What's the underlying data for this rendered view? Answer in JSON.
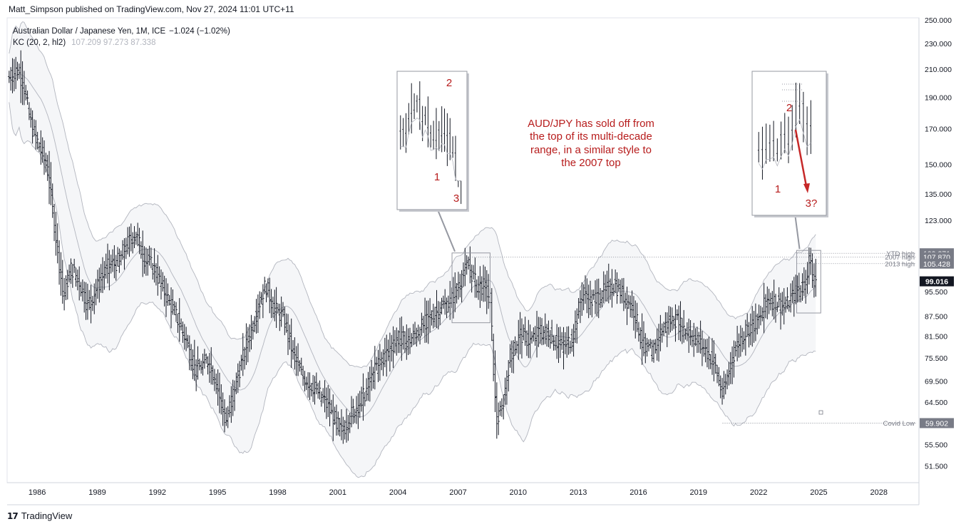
{
  "header": {
    "published_by": "Matt_Simpson published on TradingView.com, Nov 27, 2024 11:01 UTC+11"
  },
  "legend": {
    "symbol": "Australian Dollar / Japanese Yen, 1M, ICE",
    "change": "−1.024 (−1.02%)",
    "indicator": "KC (20, 2, hl2)",
    "indicator_values": "107.209  97.273  87.338"
  },
  "colors": {
    "candle": "#131722",
    "band": "#b2b5be",
    "annotation": "#b71c1c",
    "arrow": "#c62828"
  },
  "chart_data": {
    "type": "ohlc-bar",
    "symbol": "AUD/JPY",
    "timeframe": "1M",
    "xlim": [
      1984.5,
      2030.0
    ],
    "ylim": [
      48.5,
      252.0
    ],
    "y_scale": "log",
    "x_ticks": [
      "1986",
      "1989",
      "1992",
      "1995",
      "1998",
      "2001",
      "2004",
      "2007",
      "2010",
      "2013",
      "2016",
      "2019",
      "2022",
      "2025",
      "2028"
    ],
    "y_ticks": [
      "250.000",
      "230.000",
      "210.000",
      "190.000",
      "170.000",
      "150.000",
      "135.000",
      "123.000",
      "95.500",
      "87.500",
      "81.500",
      "75.500",
      "69.500",
      "64.500",
      "55.500",
      "51.500"
    ],
    "anchors": [
      [
        1984.6,
        204
      ],
      [
        1985.0,
        210
      ],
      [
        1985.3,
        200
      ],
      [
        1985.7,
        172
      ],
      [
        1986.1,
        160
      ],
      [
        1986.5,
        148
      ],
      [
        1986.9,
        118
      ],
      [
        1987.3,
        94
      ],
      [
        1987.7,
        104
      ],
      [
        1988.1,
        99
      ],
      [
        1988.5,
        91
      ],
      [
        1989.0,
        97
      ],
      [
        1989.5,
        104
      ],
      [
        1990.0,
        106
      ],
      [
        1990.5,
        113
      ],
      [
        1990.9,
        118
      ],
      [
        1991.3,
        108
      ],
      [
        1991.8,
        104
      ],
      [
        1992.3,
        96
      ],
      [
        1992.9,
        88
      ],
      [
        1993.4,
        81
      ],
      [
        1993.9,
        72
      ],
      [
        1994.5,
        75
      ],
      [
        1994.9,
        70
      ],
      [
        1995.4,
        60
      ],
      [
        1995.9,
        69
      ],
      [
        1996.5,
        80
      ],
      [
        1997.0,
        90
      ],
      [
        1997.4,
        98
      ],
      [
        1997.8,
        90
      ],
      [
        1998.3,
        87
      ],
      [
        1998.8,
        76
      ],
      [
        1999.2,
        71
      ],
      [
        1999.8,
        68
      ],
      [
        2000.3,
        65
      ],
      [
        2000.8,
        61
      ],
      [
        2001.2,
        58
      ],
      [
        2001.7,
        62
      ],
      [
        2002.3,
        66
      ],
      [
        2003.0,
        74
      ],
      [
        2003.5,
        77
      ],
      [
        2004.0,
        81
      ],
      [
        2004.5,
        80
      ],
      [
        2005.0,
        83
      ],
      [
        2005.6,
        87
      ],
      [
        2006.1,
        90
      ],
      [
        2006.6,
        92
      ],
      [
        2007.0,
        97
      ],
      [
        2007.5,
        105
      ],
      [
        2007.9,
        98
      ],
      [
        2008.3,
        97
      ],
      [
        2008.6,
        93
      ],
      [
        2008.9,
        60
      ],
      [
        2009.2,
        63
      ],
      [
        2009.6,
        76
      ],
      [
        2010.1,
        82
      ],
      [
        2010.6,
        80
      ],
      [
        2011.1,
        83
      ],
      [
        2011.6,
        82
      ],
      [
        2012.2,
        78
      ],
      [
        2012.7,
        81
      ],
      [
        2013.2,
        95
      ],
      [
        2013.6,
        92
      ],
      [
        2014.2,
        95
      ],
      [
        2014.8,
        98
      ],
      [
        2015.3,
        94
      ],
      [
        2015.8,
        89
      ],
      [
        2016.2,
        79
      ],
      [
        2016.7,
        77
      ],
      [
        2017.2,
        84
      ],
      [
        2017.8,
        87
      ],
      [
        2018.2,
        84
      ],
      [
        2018.8,
        81
      ],
      [
        2019.3,
        78
      ],
      [
        2019.8,
        74
      ],
      [
        2020.2,
        66
      ],
      [
        2020.6,
        74
      ],
      [
        2021.0,
        80
      ],
      [
        2021.5,
        84
      ],
      [
        2022.0,
        86
      ],
      [
        2022.4,
        93
      ],
      [
        2022.9,
        92
      ],
      [
        2023.3,
        90
      ],
      [
        2023.8,
        95
      ],
      [
        2024.3,
        98
      ],
      [
        2024.55,
        108
      ],
      [
        2024.7,
        99
      ],
      [
        2024.9,
        101
      ]
    ],
    "price_labels": [
      {
        "value": "109.371",
        "label": "YTD high"
      },
      {
        "value": "107.870",
        "label": "2007 high"
      },
      {
        "value": "105.428",
        "label": "2013 high"
      },
      {
        "value": "59.902",
        "label": "Covid Low"
      }
    ],
    "last_price": "99.016",
    "inset_left_labels": [
      "1",
      "2",
      "3"
    ],
    "inset_right_labels": [
      "1",
      "2",
      "3?"
    ],
    "annotation_lines": [
      "AUD/JPY has sold off from",
      "the top of its multi-decade",
      "range, in a similar style to",
      "the 2007 top"
    ]
  },
  "footer": {
    "brand": "TradingView"
  }
}
